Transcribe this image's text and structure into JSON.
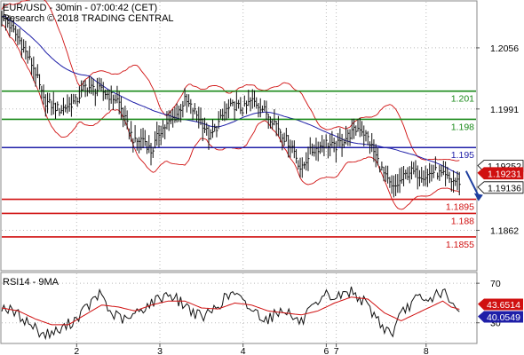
{
  "chart_data": [
    {
      "type": "candlestick",
      "header": {
        "line1": "EUR/USD - 30min - 07:00:42 (CET)",
        "line2": "Research © 2018 TRADING CENTRAL"
      },
      "y_ticks": [
        "1.2056",
        "1.1991",
        "1.1862"
      ],
      "ylim": [
        1.182,
        1.2105
      ],
      "x_ticks": [
        {
          "label": "2",
          "t": 9
        },
        {
          "label": "3",
          "t": 19
        },
        {
          "label": "4",
          "t": 29
        },
        {
          "label": "6",
          "t": 39
        },
        {
          "label": "7",
          "t": 40.2
        },
        {
          "label": "8",
          "t": 51
        }
      ],
      "xlim": [
        0,
        57
      ],
      "levels": [
        {
          "label": "1.201",
          "value": 1.201,
          "color": "#1a8a1a"
        },
        {
          "label": "1.198",
          "value": 1.198,
          "color": "#1a8a1a"
        },
        {
          "label": "1.195",
          "value": 1.195,
          "color": "#1f1fa8"
        },
        {
          "label": "1.1895",
          "value": 1.1895,
          "color": "#d01010"
        },
        {
          "label": "1.188",
          "value": 1.188,
          "color": "#d01010"
        },
        {
          "label": "1.1855",
          "value": 1.1855,
          "color": "#d01010"
        }
      ],
      "price_labels": [
        {
          "label": "1.19252",
          "value": 1.19252,
          "bg": "#ffffff",
          "fg": "#000000",
          "border": "#000000"
        },
        {
          "label": "1.19231",
          "value": 1.19231,
          "bg": "#d01010",
          "fg": "#ffffff",
          "border": "#d01010"
        },
        {
          "label": "1.19136",
          "value": 1.19136,
          "bg": "#ffffff",
          "fg": "#000000",
          "border": "#000000"
        }
      ],
      "price_anchors": [
        [
          0,
          1.2092
        ],
        [
          2,
          1.2066
        ],
        [
          4,
          1.2032
        ],
        [
          5,
          1.2
        ],
        [
          7,
          1.199
        ],
        [
          9,
          1.2
        ],
        [
          10,
          1.2015
        ],
        [
          12,
          1.201
        ],
        [
          14,
          1.2
        ],
        [
          15,
          1.1975
        ],
        [
          16,
          1.1955
        ],
        [
          17,
          1.196
        ],
        [
          18,
          1.1945
        ],
        [
          19,
          1.1968
        ],
        [
          20,
          1.1975
        ],
        [
          21,
          1.1985
        ],
        [
          22,
          1.2
        ],
        [
          23,
          1.199
        ],
        [
          24,
          1.1978
        ],
        [
          25,
          1.196
        ],
        [
          26,
          1.1975
        ],
        [
          27,
          1.199
        ],
        [
          28,
          1.1995
        ],
        [
          29,
          1.199
        ],
        [
          30,
          1.2
        ],
        [
          31,
          1.1995
        ],
        [
          32,
          1.1985
        ],
        [
          33,
          1.1975
        ],
        [
          34,
          1.196
        ],
        [
          35,
          1.195
        ],
        [
          36,
          1.1925
        ],
        [
          37,
          1.1945
        ],
        [
          38,
          1.195
        ],
        [
          39,
          1.1955
        ],
        [
          40,
          1.195
        ],
        [
          42,
          1.1965
        ],
        [
          43,
          1.1972
        ],
        [
          44,
          1.196
        ],
        [
          45,
          1.194
        ],
        [
          46,
          1.192
        ],
        [
          47,
          1.1905
        ],
        [
          48,
          1.1915
        ],
        [
          49,
          1.1925
        ],
        [
          50,
          1.1922
        ],
        [
          51,
          1.192
        ],
        [
          52,
          1.1925
        ],
        [
          53,
          1.192
        ],
        [
          54,
          1.1915
        ],
        [
          55,
          1.19136
        ]
      ],
      "trend_arrow": {
        "from": [
          55.8,
          1.1925
        ],
        "to": [
          57.3,
          1.1893
        ],
        "color": "#1f3f9f"
      }
    },
    {
      "type": "line",
      "title": "RSI14 - 9MA",
      "y_ticks": [
        "70",
        "30"
      ],
      "ylim": [
        10,
        80
      ],
      "series": [
        {
          "name": "RSI14",
          "color": "#111111",
          "anchors": [
            [
              0,
              47
            ],
            [
              2,
              38
            ],
            [
              4,
              25
            ],
            [
              5,
              18
            ],
            [
              7,
              22
            ],
            [
              9,
              35
            ],
            [
              11,
              52
            ],
            [
              12,
              60
            ],
            [
              13,
              40
            ],
            [
              15,
              32
            ],
            [
              17,
              45
            ],
            [
              19,
              55
            ],
            [
              20,
              60
            ],
            [
              22,
              48
            ],
            [
              24,
              35
            ],
            [
              25,
              40
            ],
            [
              27,
              56
            ],
            [
              28,
              60
            ],
            [
              29,
              50
            ],
            [
              31,
              38
            ],
            [
              32,
              34
            ],
            [
              34,
              45
            ],
            [
              35,
              35
            ],
            [
              36,
              30
            ],
            [
              37,
              42
            ],
            [
              38,
              46
            ],
            [
              39,
              58
            ],
            [
              40,
              55
            ],
            [
              42,
              62
            ],
            [
              43,
              56
            ],
            [
              45,
              36
            ],
            [
              46,
              24
            ],
            [
              47,
              20
            ],
            [
              48,
              38
            ],
            [
              49,
              48
            ],
            [
              50,
              55
            ],
            [
              51,
              50
            ],
            [
              52,
              58
            ],
            [
              53,
              62
            ],
            [
              54,
              48
            ],
            [
              55,
              40.05
            ]
          ]
        },
        {
          "name": "9MA",
          "color": "#d01010",
          "anchors": [
            [
              0,
              45
            ],
            [
              2,
              42
            ],
            [
              4,
              34
            ],
            [
              6,
              28
            ],
            [
              8,
              28
            ],
            [
              10,
              38
            ],
            [
              12,
              48
            ],
            [
              14,
              46
            ],
            [
              16,
              42
            ],
            [
              18,
              48
            ],
            [
              20,
              52
            ],
            [
              22,
              52
            ],
            [
              24,
              45
            ],
            [
              26,
              44
            ],
            [
              28,
              50
            ],
            [
              30,
              48
            ],
            [
              32,
              42
            ],
            [
              34,
              40
            ],
            [
              36,
              38
            ],
            [
              38,
              42
            ],
            [
              40,
              50
            ],
            [
              42,
              56
            ],
            [
              44,
              54
            ],
            [
              46,
              40
            ],
            [
              48,
              32
            ],
            [
              50,
              40
            ],
            [
              52,
              48
            ],
            [
              53,
              52
            ],
            [
              54,
              46
            ],
            [
              55,
              43.65
            ]
          ]
        }
      ],
      "value_labels": [
        {
          "label": "43.6514",
          "value": 43.65,
          "bg": "#d01010",
          "fg": "#ffffff"
        },
        {
          "label": "40.0549",
          "value": 40.05,
          "bg": "#1f1fa8",
          "fg": "#ffffff"
        }
      ]
    }
  ]
}
